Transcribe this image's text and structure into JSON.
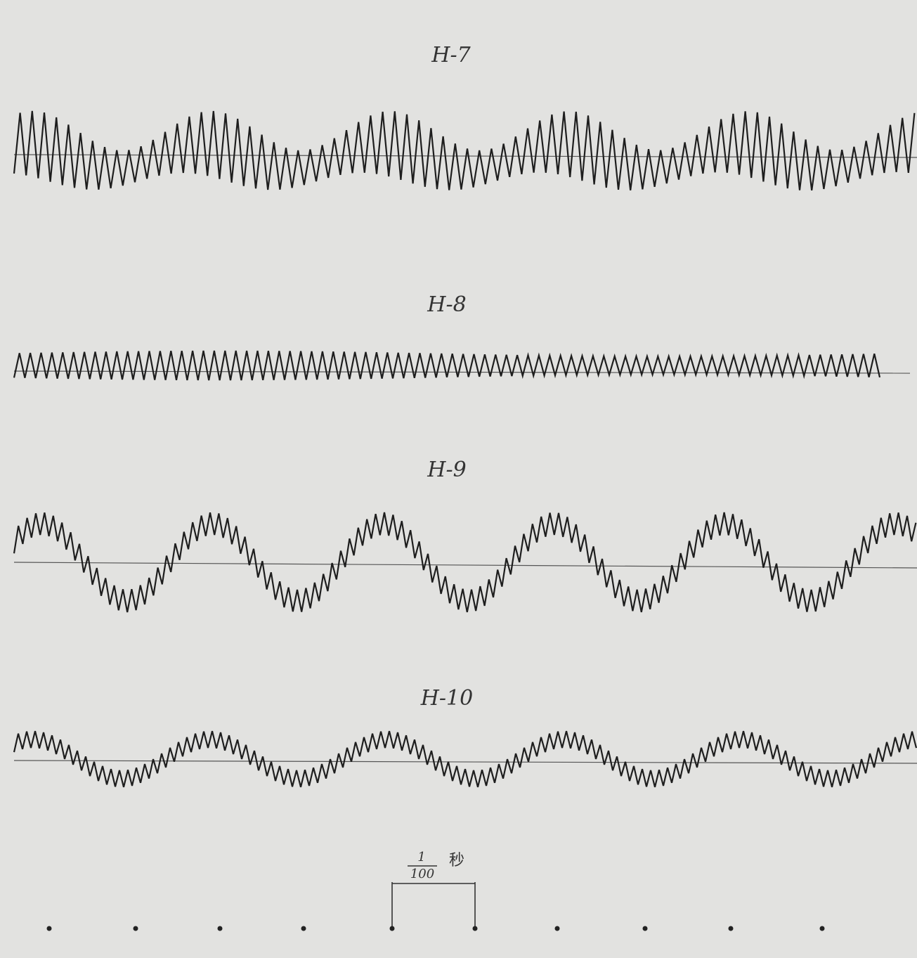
{
  "traces": [
    {
      "label": "H-7"
    },
    {
      "label": "H-8"
    },
    {
      "label": "H-9"
    },
    {
      "label": "H-10"
    }
  ],
  "scale": {
    "numerator": "1",
    "denominator": "100",
    "unit": "秒"
  }
}
